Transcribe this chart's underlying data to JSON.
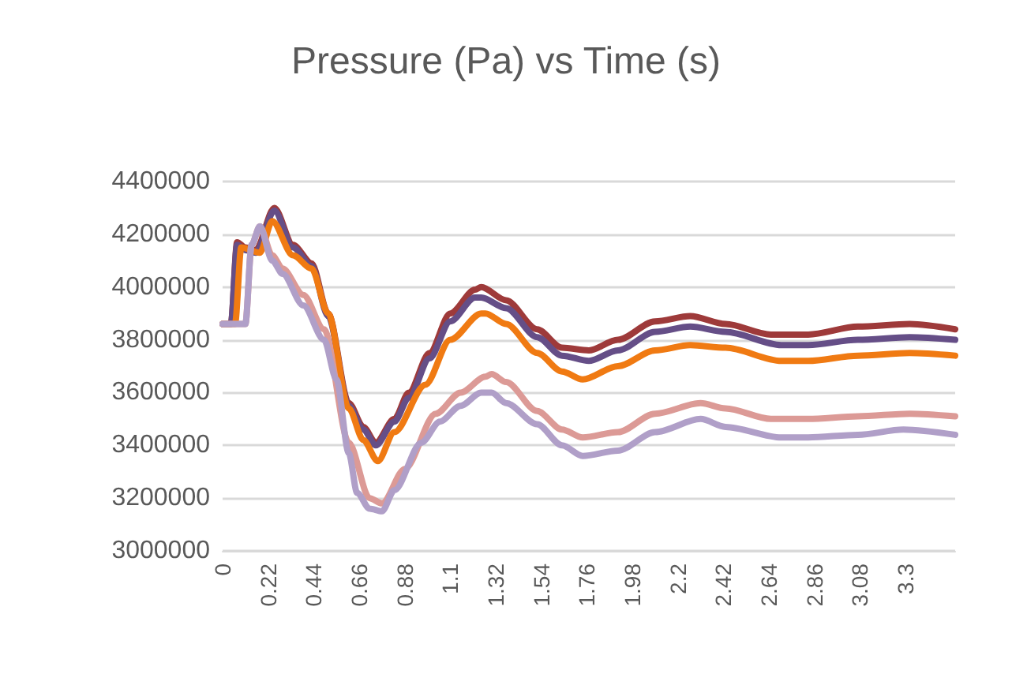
{
  "chart_data": {
    "type": "line",
    "title": "Pressure (Pa) vs Time (s)",
    "xlim": [
      0,
      3.54
    ],
    "xticks": [
      0,
      0.22,
      0.44,
      0.66,
      0.88,
      1.1,
      1.32,
      1.54,
      1.76,
      1.98,
      2.2,
      2.42,
      2.64,
      2.86,
      3.08,
      3.3
    ],
    "ylim": [
      3000000,
      4400000
    ],
    "yticks": [
      3000000,
      3200000,
      3400000,
      3600000,
      3800000,
      4000000,
      4200000,
      4400000
    ],
    "grid": "y",
    "marker": "none",
    "line_style": "solid",
    "series": [
      {
        "color": "#9e3a3a",
        "x": [
          0,
          0.04,
          0.07,
          0.11,
          0.16,
          0.25,
          0.34,
          0.43,
          0.51,
          0.61,
          0.68,
          0.74,
          0.83,
          0.9,
          1.0,
          1.1,
          1.22,
          1.25,
          1.37,
          1.52,
          1.64,
          1.77,
          1.91,
          2.09,
          2.26,
          2.43,
          2.65,
          2.83,
          3.07,
          3.32,
          3.54
        ],
        "values": [
          3860000,
          3860000,
          4170000,
          4150000,
          4140000,
          4300000,
          4160000,
          4090000,
          3900000,
          3560000,
          3470000,
          3410000,
          3500000,
          3600000,
          3750000,
          3900000,
          3990000,
          4000000,
          3950000,
          3840000,
          3770000,
          3760000,
          3800000,
          3870000,
          3890000,
          3860000,
          3820000,
          3820000,
          3850000,
          3860000,
          3840000
        ]
      },
      {
        "color": "#654e87",
        "x": [
          0,
          0.04,
          0.07,
          0.11,
          0.16,
          0.25,
          0.34,
          0.43,
          0.51,
          0.61,
          0.68,
          0.74,
          0.83,
          0.9,
          1.0,
          1.1,
          1.22,
          1.25,
          1.37,
          1.52,
          1.64,
          1.77,
          1.91,
          2.09,
          2.26,
          2.43,
          2.7,
          2.83,
          3.07,
          3.32,
          3.54
        ],
        "values": [
          3860000,
          3860000,
          4160000,
          4140000,
          4130000,
          4290000,
          4150000,
          4080000,
          3890000,
          3550000,
          3460000,
          3400000,
          3490000,
          3580000,
          3730000,
          3870000,
          3960000,
          3960000,
          3920000,
          3810000,
          3740000,
          3720000,
          3760000,
          3830000,
          3850000,
          3830000,
          3780000,
          3780000,
          3800000,
          3810000,
          3800000
        ]
      },
      {
        "color": "#f07a12",
        "x": [
          0,
          0.06,
          0.09,
          0.18,
          0.24,
          0.34,
          0.43,
          0.51,
          0.61,
          0.68,
          0.75,
          0.83,
          0.98,
          1.1,
          1.25,
          1.27,
          1.37,
          1.52,
          1.64,
          1.74,
          1.91,
          2.09,
          2.26,
          2.43,
          2.7,
          2.83,
          3.07,
          3.32,
          3.54
        ],
        "values": [
          3860000,
          3860000,
          4150000,
          4130000,
          4250000,
          4120000,
          4070000,
          3900000,
          3540000,
          3420000,
          3340000,
          3450000,
          3630000,
          3800000,
          3900000,
          3900000,
          3860000,
          3750000,
          3680000,
          3650000,
          3700000,
          3760000,
          3780000,
          3770000,
          3720000,
          3720000,
          3740000,
          3750000,
          3740000
        ]
      },
      {
        "color": "#dc9a96",
        "x": [
          0,
          0.11,
          0.14,
          0.18,
          0.24,
          0.29,
          0.39,
          0.49,
          0.61,
          0.71,
          0.77,
          0.88,
          1.03,
          1.15,
          1.27,
          1.3,
          1.37,
          1.52,
          1.64,
          1.74,
          1.91,
          2.09,
          2.31,
          2.43,
          2.65,
          2.83,
          3.07,
          3.32,
          3.54
        ],
        "values": [
          3860000,
          3860000,
          4160000,
          4230000,
          4120000,
          4070000,
          3970000,
          3840000,
          3410000,
          3200000,
          3180000,
          3310000,
          3520000,
          3600000,
          3660000,
          3670000,
          3640000,
          3530000,
          3460000,
          3430000,
          3450000,
          3520000,
          3560000,
          3540000,
          3500000,
          3500000,
          3510000,
          3520000,
          3510000
        ]
      },
      {
        "color": "#b09fc8",
        "x": [
          0,
          0.11,
          0.14,
          0.18,
          0.24,
          0.29,
          0.39,
          0.49,
          0.55,
          0.61,
          0.65,
          0.71,
          0.77,
          0.83,
          0.96,
          1.05,
          1.15,
          1.25,
          1.3,
          1.37,
          1.52,
          1.64,
          1.74,
          1.91,
          2.09,
          2.31,
          2.43,
          2.7,
          2.83,
          3.07,
          3.29,
          3.54
        ],
        "values": [
          3860000,
          3860000,
          4160000,
          4230000,
          4100000,
          4050000,
          3930000,
          3800000,
          3650000,
          3370000,
          3220000,
          3160000,
          3150000,
          3230000,
          3410000,
          3490000,
          3550000,
          3600000,
          3600000,
          3560000,
          3480000,
          3400000,
          3360000,
          3380000,
          3450000,
          3500000,
          3470000,
          3430000,
          3430000,
          3440000,
          3460000,
          3440000
        ]
      }
    ]
  }
}
